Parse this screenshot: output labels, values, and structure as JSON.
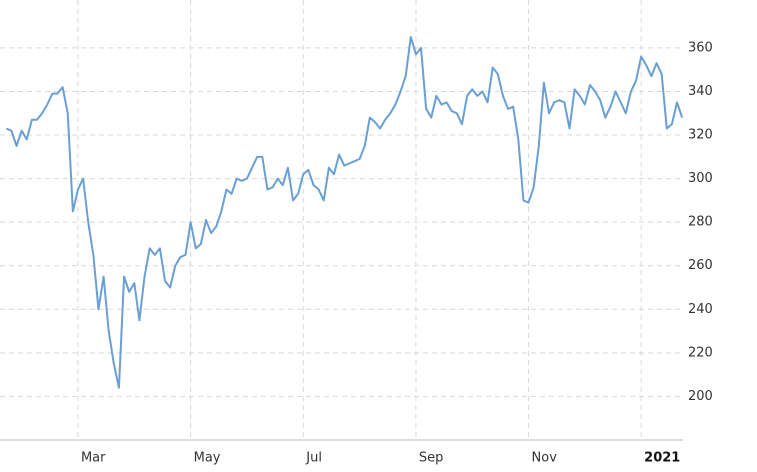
{
  "chart_data": {
    "type": "line",
    "categories": [
      null,
      null,
      null,
      null,
      null,
      null,
      null,
      null,
      null,
      null,
      null,
      null,
      null,
      null,
      "Mar",
      null,
      null,
      null,
      null,
      null,
      null,
      null,
      null,
      null,
      null,
      null,
      null,
      null,
      null,
      null,
      null,
      null,
      null,
      null,
      null,
      null,
      "May",
      null,
      null,
      null,
      null,
      null,
      null,
      null,
      null,
      null,
      null,
      null,
      null,
      null,
      null,
      null,
      null,
      null,
      null,
      null,
      null,
      null,
      "Jul",
      null,
      null,
      null,
      null,
      null,
      null,
      null,
      null,
      null,
      null,
      null,
      null,
      null,
      null,
      null,
      null,
      null,
      null,
      null,
      null,
      null,
      "Sep",
      null,
      null,
      null,
      null,
      null,
      null,
      null,
      null,
      null,
      null,
      null,
      null,
      null,
      null,
      null,
      null,
      null,
      null,
      null,
      null,
      null,
      "Nov",
      null,
      null,
      null,
      null,
      null,
      null,
      null,
      null,
      null,
      null,
      null,
      null,
      null,
      null,
      null,
      null,
      null,
      null,
      null,
      null,
      null,
      "2021",
      null,
      null,
      null,
      null,
      null,
      null,
      null,
      null
    ],
    "values": [
      323,
      322,
      315,
      322,
      318,
      327,
      327,
      330,
      334,
      339,
      339,
      342,
      330,
      285,
      295,
      300,
      280,
      265,
      240,
      255,
      230,
      215,
      204,
      255,
      248,
      252,
      235,
      255,
      268,
      265,
      268,
      253,
      250,
      260,
      264,
      265,
      280,
      268,
      270,
      281,
      275,
      278,
      285,
      295,
      293,
      300,
      299,
      300,
      305,
      310,
      310,
      295,
      296,
      300,
      297,
      305,
      290,
      293,
      302,
      304,
      297,
      295,
      290,
      305,
      302,
      311,
      306,
      307,
      308,
      309,
      315,
      328,
      326,
      323,
      327,
      330,
      334,
      340,
      347,
      365,
      357,
      360,
      332,
      328,
      338,
      334,
      335,
      331,
      330,
      325,
      338,
      341,
      338,
      340,
      335,
      351,
      348,
      338,
      332,
      333,
      318,
      290,
      289,
      296,
      315,
      344,
      330,
      335,
      336,
      335,
      323,
      341,
      338,
      334,
      343,
      340,
      336,
      328,
      333,
      340,
      335,
      330,
      340,
      345,
      356,
      352,
      347,
      353,
      348,
      323,
      325,
      335,
      328
    ],
    "color": "#6a9fd4",
    "ylim": [
      180,
      382
    ],
    "yticks": [
      200,
      220,
      240,
      260,
      280,
      300,
      320,
      340,
      360
    ],
    "grid": true
  }
}
